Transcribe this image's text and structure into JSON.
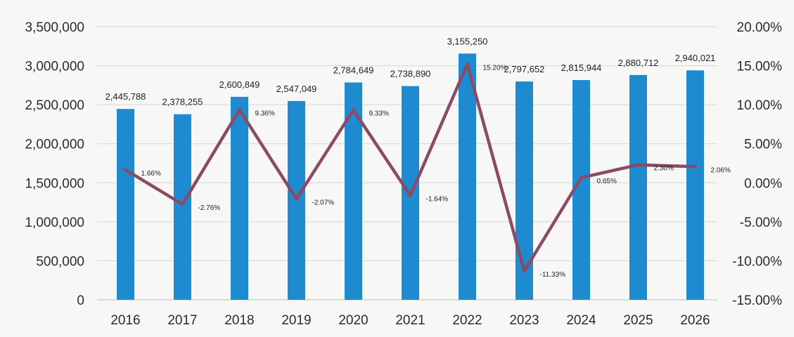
{
  "chart_data": {
    "type": "bar",
    "title": "",
    "xlabel": "",
    "ylabel": "",
    "categories": [
      "2016",
      "2017",
      "2018",
      "2019",
      "2020",
      "2021",
      "2022",
      "2023",
      "2024",
      "2025",
      "2026"
    ],
    "series": [
      {
        "type": "bar",
        "axis": "left",
        "color": "#1e8bd0",
        "values": [
          2445788,
          2378255,
          2600849,
          2547049,
          2784649,
          2738890,
          3155250,
          2797652,
          2815944,
          2880712,
          2940021
        ],
        "labels": [
          "2,445,788",
          "2,378,255",
          "2,600,849",
          "2,547,049",
          "2,784,649",
          "2,738,890",
          "3,155,250",
          "2,797,652",
          "2,815,944",
          "2,880,712",
          "2,940,021"
        ]
      },
      {
        "type": "line",
        "axis": "right",
        "color": "#8a4a68",
        "values": [
          1.66,
          -2.76,
          9.36,
          -2.07,
          9.33,
          -1.64,
          15.2,
          -11.33,
          0.65,
          2.3,
          2.06
        ],
        "labels": [
          "1.66%",
          "-2.76%",
          "9.36%",
          "-2.07%",
          "9.33%",
          "-1.64%",
          "15.20%",
          "-11.33%",
          "0.65%",
          "2.30%",
          "2.06%"
        ]
      }
    ],
    "y_left": {
      "ylim": [
        0,
        3500000
      ],
      "ticks": [
        0,
        500000,
        1000000,
        1500000,
        2000000,
        2500000,
        3000000,
        3500000
      ],
      "tick_labels": [
        "0",
        "500,000",
        "1,000,000",
        "1,500,000",
        "2,000,000",
        "2,500,000",
        "3,000,000",
        "3,500,000"
      ]
    },
    "y_right": {
      "ylim": [
        -15,
        20
      ],
      "ticks": [
        -15,
        -10,
        -5,
        0,
        5,
        10,
        15,
        20
      ],
      "tick_labels": [
        "-15.00%",
        "-10.00%",
        "-5.00%",
        "0.00%",
        "5.00%",
        "10.00%",
        "15.00%",
        "20.00%"
      ]
    },
    "grid": true,
    "legend": "none"
  }
}
